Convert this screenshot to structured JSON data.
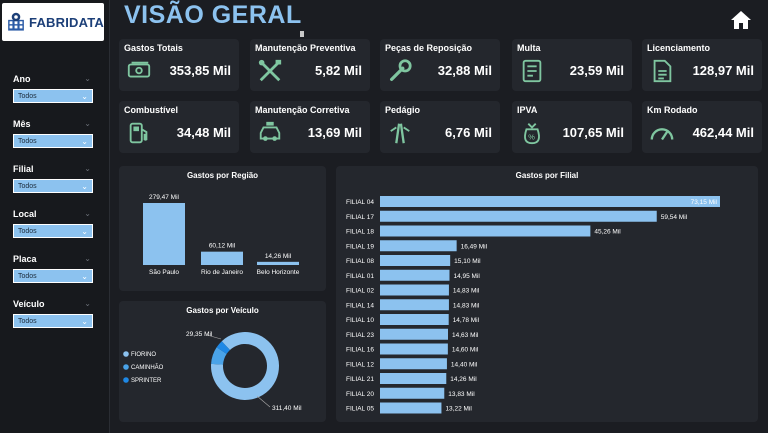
{
  "logo": {
    "text": "FABRIDATA"
  },
  "title": "VISÃO GERAL",
  "filters": [
    {
      "label": "Ano",
      "value": "Todos"
    },
    {
      "label": "Mês",
      "value": "Todos"
    },
    {
      "label": "Filial",
      "value": "Todos"
    },
    {
      "label": "Local",
      "value": "Todos"
    },
    {
      "label": "Placa",
      "value": "Todos"
    },
    {
      "label": "Veículo",
      "value": "Todos"
    }
  ],
  "kpis": [
    {
      "title": "Gastos Totais",
      "value": "353,85 Mil",
      "icon": "money-icon"
    },
    {
      "title": "Manutenção Preventiva",
      "value": "5,82 Mil",
      "icon": "tools-icon"
    },
    {
      "title": "Peças de Reposição",
      "value": "32,88 Mil",
      "icon": "wrench-icon"
    },
    {
      "title": "Multa",
      "value": "23,59 Mil",
      "icon": "ticket-icon"
    },
    {
      "title": "Licenciamento",
      "value": "128,97 Mil",
      "icon": "document-icon"
    },
    {
      "title": "Combustível",
      "value": "34,48 Mil",
      "icon": "fuel-pump-icon"
    },
    {
      "title": "Manutenção Corretiva",
      "value": "13,69 Mil",
      "icon": "car-repair-icon"
    },
    {
      "title": "Pedágio",
      "value": "6,76 Mil",
      "icon": "toll-road-icon"
    },
    {
      "title": "IPVA",
      "value": "107,65 Mil",
      "icon": "tax-bag-icon"
    },
    {
      "title": "Km Rodado",
      "value": "462,44 Mil",
      "icon": "speedometer-icon"
    }
  ],
  "colors": {
    "accent": "#8cc2ef",
    "dark_blue": "#1e88e5",
    "panel": "#24272d",
    "background": "#1b1d22"
  },
  "chart_data": [
    {
      "type": "bar",
      "title": "Gastos por Região",
      "categories": [
        "São Paulo",
        "Rio de Janeiro",
        "Belo Horizonte"
      ],
      "values": [
        279.47,
        60.12,
        14.26
      ],
      "labels": [
        "279,47 Mil",
        "60,12 Mil",
        "14,26 Mil"
      ]
    },
    {
      "type": "pie",
      "title": "Gastos por Veículo",
      "categories": [
        "FIORINO",
        "CAMINHÃO",
        "SPRINTER"
      ],
      "values": [
        311.4,
        29.35,
        13.1
      ],
      "labels": [
        "311,40 Mil",
        "29,35 Mil",
        ""
      ],
      "legend": "left"
    },
    {
      "type": "bar",
      "orientation": "horizontal",
      "title": "Gastos por Filial",
      "categories": [
        "FILIAL 04",
        "FILIAL 17",
        "FILIAL 18",
        "FILIAL 19",
        "FILIAL 08",
        "FILIAL 01",
        "FILIAL 02",
        "FILIAL 14",
        "FILIAL 10",
        "FILIAL 23",
        "FILIAL 16",
        "FILIAL 12",
        "FILIAL 21",
        "FILIAL 20",
        "FILIAL 05"
      ],
      "values": [
        73.15,
        59.54,
        45.26,
        16.49,
        15.1,
        14.95,
        14.83,
        14.83,
        14.78,
        14.63,
        14.6,
        14.4,
        14.26,
        13.83,
        13.22
      ],
      "labels": [
        "73,15 Mil",
        "59,54 Mil",
        "45,26 Mil",
        "16,49 Mil",
        "15,10 Mil",
        "14,95 Mil",
        "14,83 Mil",
        "14,83 Mil",
        "14,78 Mil",
        "14,63 Mil",
        "14,60 Mil",
        "14,40 Mil",
        "14,26 Mil",
        "13,83 Mil",
        "13,22 Mil"
      ]
    }
  ]
}
